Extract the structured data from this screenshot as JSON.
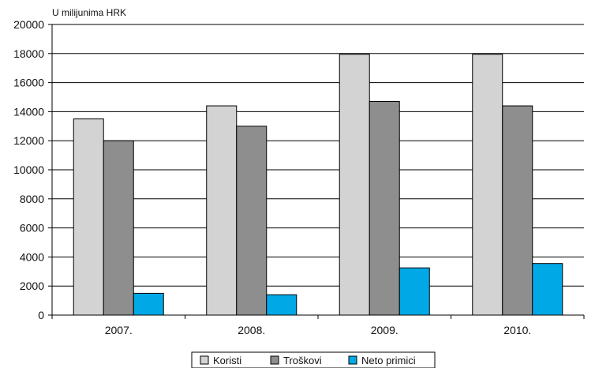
{
  "chart_data": {
    "type": "bar",
    "unit_label": "U milijunima HRK",
    "categories": [
      "2007.",
      "2008.",
      "2009.",
      "2010."
    ],
    "series": [
      {
        "name": "Koristi",
        "values": [
          13500,
          14400,
          17950,
          17950
        ],
        "color": "#d3d3d3"
      },
      {
        "name": "Troškovi",
        "values": [
          12000,
          13000,
          14700,
          14400
        ],
        "color": "#8e8e8e"
      },
      {
        "name": "Neto primici",
        "values": [
          1500,
          1400,
          3250,
          3550
        ],
        "color": "#00a9e6"
      }
    ],
    "ylim": [
      0,
      20000
    ],
    "yticks": [
      "0",
      "2000",
      "4000",
      "6000",
      "8000",
      "10000",
      "12000",
      "14000",
      "16000",
      "18000",
      "20000"
    ],
    "grid": true,
    "legend_position": "bottom-center"
  }
}
